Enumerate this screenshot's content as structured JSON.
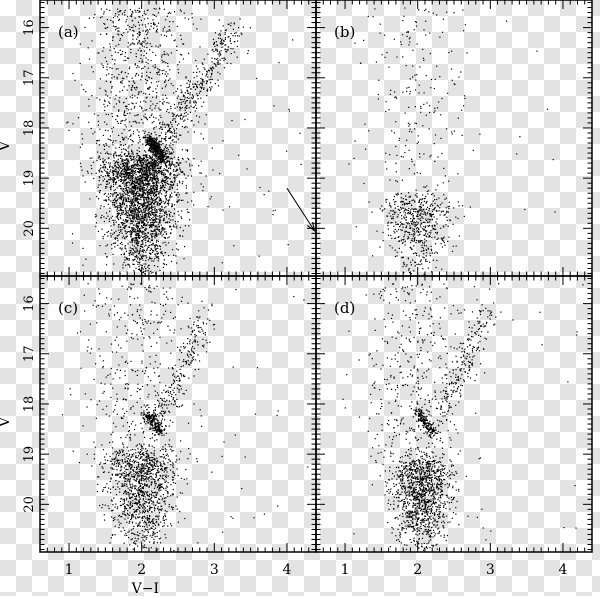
{
  "chart_data": {
    "type": "scatter",
    "xlabel": "V−I",
    "ylabel": "V",
    "xlim": [
      0.6,
      4.4
    ],
    "ylim": [
      20.95,
      15.45
    ],
    "y_inverted": true,
    "xticks": [
      "1",
      "2",
      "3",
      "4"
    ],
    "yticks": [
      "16",
      "17",
      "18",
      "19",
      "20"
    ],
    "grid": false,
    "layout": "2x2 grid, shared axes",
    "marker_color": "#000000",
    "panels": [
      {
        "label": "(a)",
        "density": "high",
        "features": {
          "main_sequence": {
            "x_center": 2.0,
            "x_spread": 0.28,
            "v_range": [
              18.6,
              20.95
            ]
          },
          "red_clump": {
            "x": 2.15,
            "v": 18.35
          },
          "red_giant_branch": {
            "x_range": [
              2.15,
              3.3
            ],
            "v_range": [
              18.6,
              16.0
            ]
          },
          "annotation": "reddening vector arrow",
          "arrow": {
            "from": [
              4.0,
              19.2
            ],
            "to": [
              4.38,
              20.05
            ]
          }
        }
      },
      {
        "label": "(b)",
        "density": "low",
        "features": {
          "main_sequence": {
            "x_center": 2.0,
            "x_spread": 0.25,
            "v_range": [
              19.4,
              20.95
            ]
          }
        }
      },
      {
        "label": "(c)",
        "density": "medium",
        "features": {
          "main_sequence": {
            "x_center": 2.0,
            "x_spread": 0.26,
            "v_range": [
              19.0,
              20.95
            ]
          },
          "red_clump": {
            "x": 2.1,
            "v": 18.3
          },
          "red_giant_branch": {
            "x_range": [
              2.2,
              2.9
            ],
            "v_range": [
              18.4,
              16.3
            ]
          }
        }
      },
      {
        "label": "(d)",
        "density": "medium",
        "features": {
          "main_sequence": {
            "x_center": 2.05,
            "x_spread": 0.22,
            "v_range": [
              19.2,
              20.95
            ]
          },
          "red_clump": {
            "x": 2.05,
            "v": 18.3
          },
          "red_giant_branch": {
            "x_range": [
              2.3,
              3.0
            ],
            "v_range": [
              18.2,
              16.1
            ]
          }
        }
      }
    ]
  }
}
